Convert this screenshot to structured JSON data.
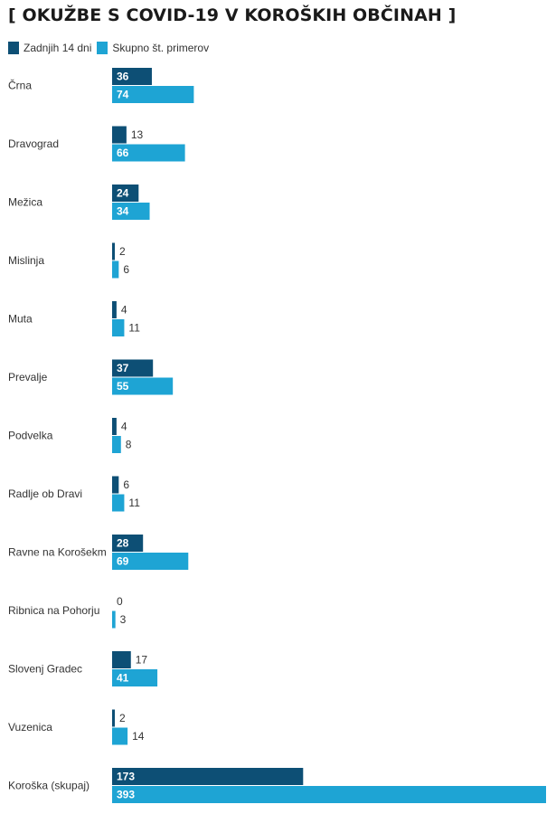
{
  "chart_data": {
    "type": "bar",
    "orientation": "horizontal",
    "title": "[ OKUŽBE S COVID-19 V KOROŠKIH OBČINAH ]",
    "categories": [
      "Črna",
      "Dravograd",
      "Mežica",
      "Mislinja",
      "Muta",
      "Prevalje",
      "Podvelka",
      "Radlje ob Dravi",
      "Ravne na Korošekm",
      "Ribnica na Pohorju",
      "Slovenj Gradec",
      "Vuzenica",
      "Koroška (skupaj)"
    ],
    "series": [
      {
        "name": "Zadnjih 14 dni",
        "color": "#0d4f75",
        "values": [
          36,
          13,
          24,
          2,
          4,
          37,
          4,
          6,
          28,
          0,
          17,
          2,
          173
        ]
      },
      {
        "name": "Skupno št. primerov",
        "color": "#1ea4d4",
        "values": [
          74,
          66,
          34,
          6,
          11,
          55,
          8,
          11,
          69,
          3,
          41,
          14,
          393
        ]
      }
    ],
    "xlim": [
      0,
      393
    ],
    "grid": false,
    "legend": "top-left",
    "data_labels": true
  }
}
